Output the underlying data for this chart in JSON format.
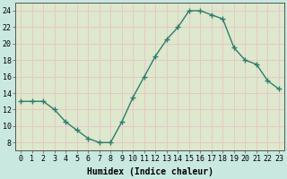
{
  "x": [
    0,
    1,
    2,
    3,
    4,
    5,
    6,
    7,
    8,
    9,
    10,
    11,
    12,
    13,
    14,
    15,
    16,
    17,
    18,
    19,
    20,
    21,
    22,
    23
  ],
  "y": [
    13,
    13,
    13,
    12,
    10.5,
    9.5,
    8.5,
    8,
    8,
    10.5,
    13.5,
    16,
    18.5,
    20.5,
    22,
    24,
    24,
    23.5,
    23,
    19.5,
    18,
    17.5,
    15.5,
    14.5
  ],
  "line_color": "#2e7d6e",
  "marker": "+",
  "bg_color": "#cce8e8",
  "plot_bg_color": "#ddeedd",
  "grid_color": "#f0c8c8",
  "xlabel": "Humidex (Indice chaleur)",
  "ylim": [
    7,
    25
  ],
  "yticks": [
    8,
    10,
    12,
    14,
    16,
    18,
    20,
    22,
    24
  ],
  "xticks": [
    0,
    1,
    2,
    3,
    4,
    5,
    6,
    7,
    8,
    9,
    10,
    11,
    12,
    13,
    14,
    15,
    16,
    17,
    18,
    19,
    20,
    21,
    22,
    23
  ],
  "xlabel_fontsize": 7,
  "tick_fontsize": 6,
  "line_width": 1.0,
  "marker_size": 4
}
